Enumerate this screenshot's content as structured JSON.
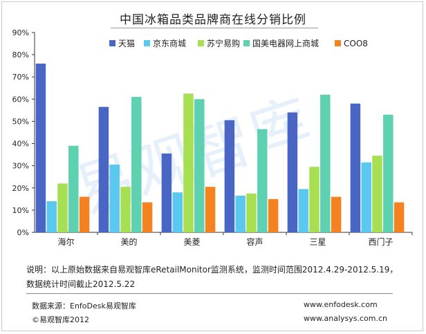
{
  "chart_data": {
    "type": "bar",
    "title": "中国冰箱品类品牌商在线分销比例",
    "categories": [
      "海尔",
      "美的",
      "美菱",
      "容声",
      "三星",
      "西门子"
    ],
    "ylim": [
      0,
      90
    ],
    "yticks": [
      "0%",
      "10%",
      "20%",
      "30%",
      "40%",
      "50%",
      "60%",
      "70%",
      "80%",
      "90%"
    ],
    "legend_position": "top-right",
    "grid": false,
    "series": [
      {
        "name": "天猫",
        "color": "#4a66c4",
        "values": [
          76,
          56.5,
          35.5,
          50.5,
          54,
          58
        ]
      },
      {
        "name": "京东商城",
        "color": "#5bc8f0",
        "values": [
          14,
          30.5,
          18,
          16.5,
          19.5,
          31.5
        ]
      },
      {
        "name": "苏宁易购",
        "color": "#a6e052",
        "values": [
          22,
          20.5,
          62.5,
          17.5,
          29.5,
          34.5
        ]
      },
      {
        "name": "国美电器网上商城",
        "color": "#5ed1b0",
        "values": [
          39,
          61,
          60,
          46.5,
          62,
          53
        ]
      },
      {
        "name": "COO8",
        "color": "#f58220",
        "values": [
          16,
          13.5,
          20.5,
          15,
          16,
          13.5
        ]
      }
    ]
  },
  "watermark": "易观智库",
  "notes": {
    "line1": "说明：以上原始数据来自易观智库eRetailMonitor监测系统，监测时间范围2012.4.29-2012.5.19，",
    "line2": "数据统计时间截止2012.5.22"
  },
  "footer": {
    "source": "数据来源：EnfoDesk易观智库",
    "copyright": "©易观智库2012",
    "url1": "www.enfodesk.com",
    "url2": "www.analysys.com.cn"
  }
}
